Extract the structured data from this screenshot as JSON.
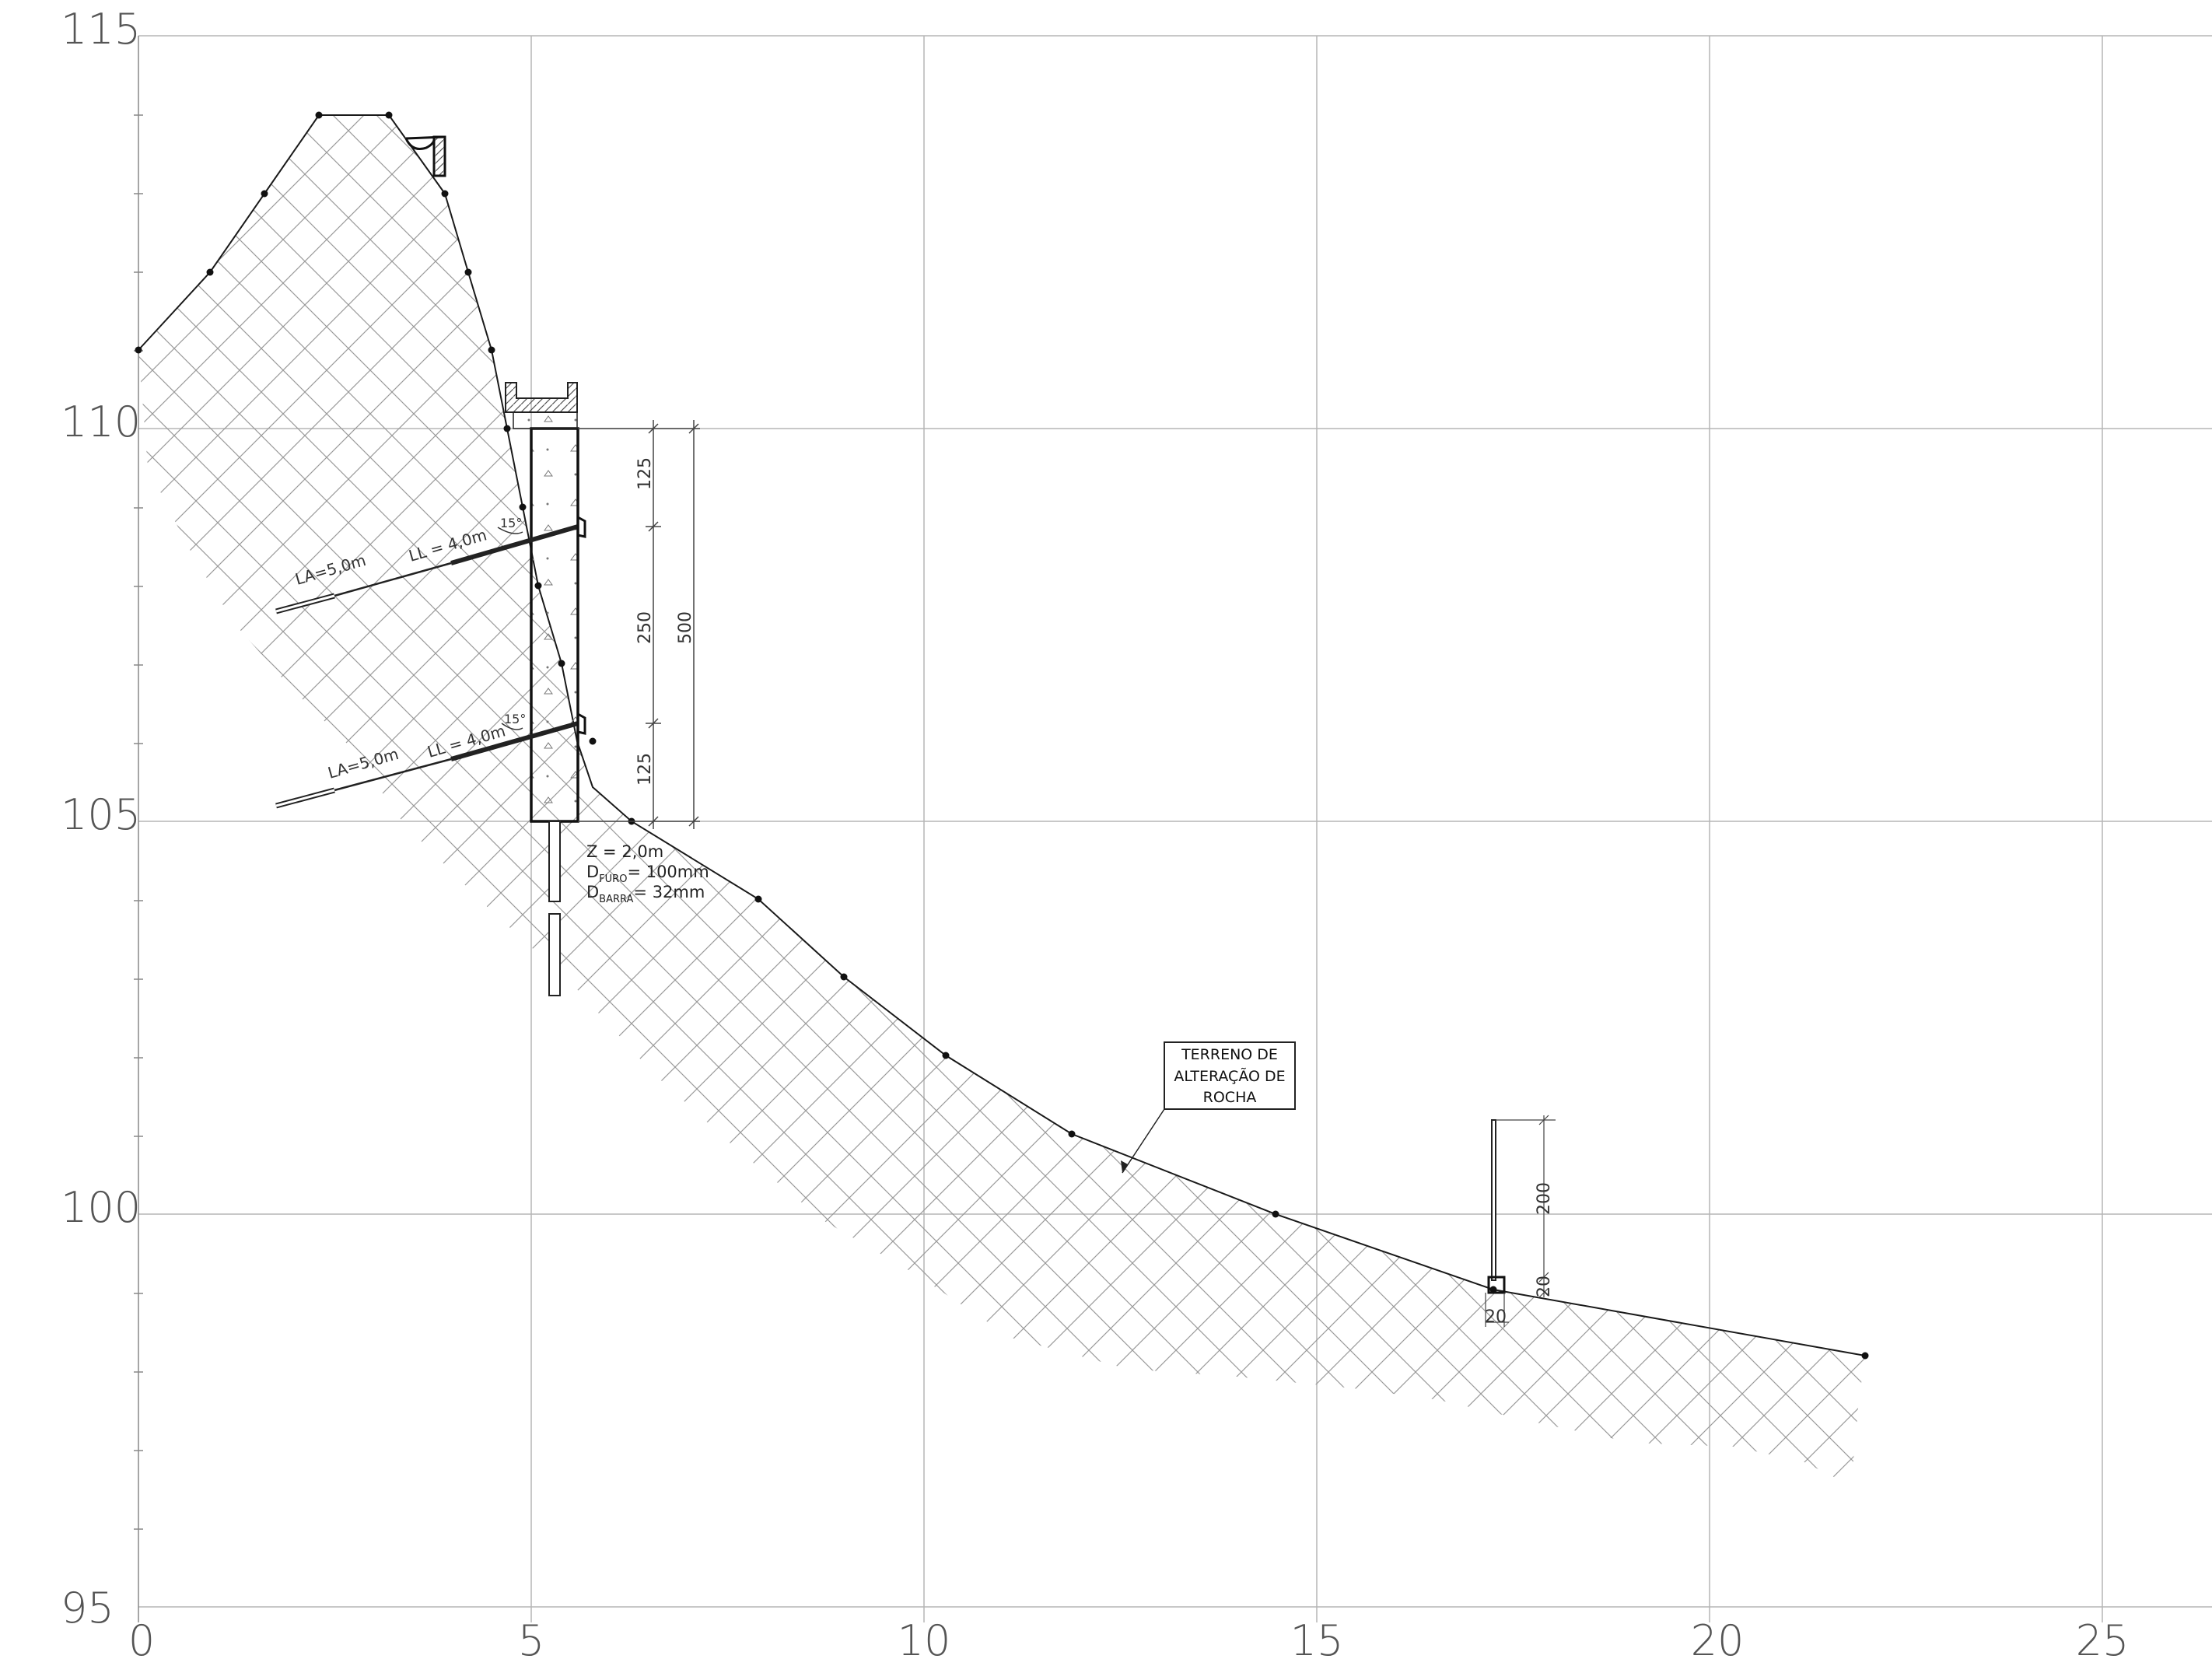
{
  "axes": {
    "x_ticks": [
      "0",
      "5",
      "10",
      "15",
      "20",
      "25"
    ],
    "y_ticks": [
      "115",
      "110",
      "105",
      "100",
      "95"
    ]
  },
  "callout": {
    "lines": [
      "TERRENO DE",
      "ALTERAÇÃO DE",
      "ROCHA"
    ]
  },
  "anchors": [
    {
      "free_length": "LL = 4,0m",
      "bond_length": "LA=5,0m",
      "angle": "15°"
    },
    {
      "free_length": "LL = 4,0m",
      "bond_length": "LA=5,0m",
      "angle": "15°"
    }
  ],
  "wall_dimensions": {
    "segments": [
      "125",
      "250",
      "125"
    ],
    "total": "500"
  },
  "pile_notes": {
    "z": "Z = 2,0m",
    "d_furo_prefix": "D",
    "d_furo_sub": "FURO",
    "d_furo_value": "= 100mm",
    "d_barra_prefix": "D",
    "d_barra_sub": "BARRA",
    "d_barra_value": "= 32mm"
  },
  "drain_dimensions": {
    "height": "200",
    "base_height": "20",
    "base_width": "20"
  },
  "colors": {
    "grid": "#b5b5b5",
    "line": "#1a1a1a",
    "hatch": "#9a9a9a",
    "text": "#555555"
  }
}
